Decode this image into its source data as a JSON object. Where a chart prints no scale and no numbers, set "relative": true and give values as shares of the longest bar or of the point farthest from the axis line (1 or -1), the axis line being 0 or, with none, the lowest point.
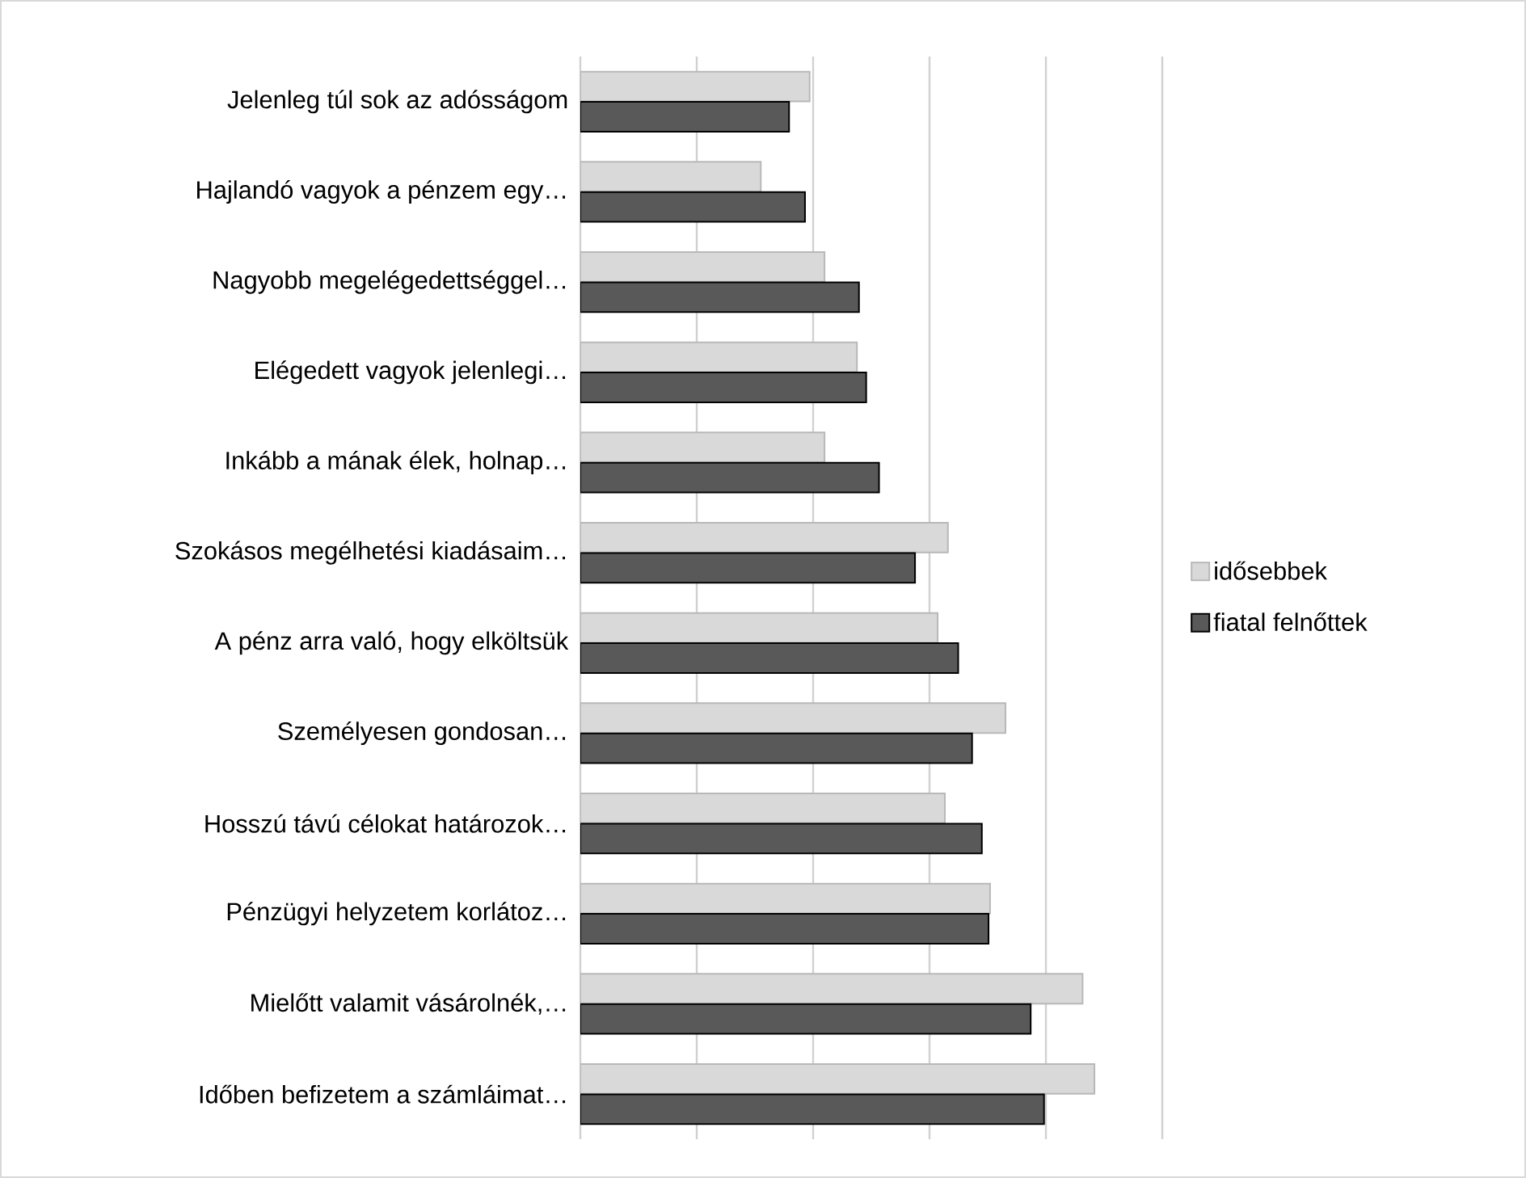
{
  "chart_data": {
    "type": "bar",
    "orientation": "horizontal",
    "relative": true,
    "grid": "x",
    "legend": "right",
    "categories": [
      "Jelenleg túl sok az adósságom",
      "Hajlandó vagyok a pénzem egy…",
      "Nagyobb megelégedettséggel…",
      "Elégedett vagyok jelenlegi…",
      "Inkább a mának élek, holnap…",
      "Szokásos megélhetési kiadásaim…",
      "A pénz arra való, hogy elköltsük",
      "Személyesen gondosan…",
      "Hosszú távú célokat határozok…",
      "Pénzügyi helyzetem korlátoz…",
      "Mielőtt valamit vásárolnék,…",
      "Időben befizetem a számláimat…"
    ],
    "series": [
      {
        "name": "idősebbek",
        "color": "#d9d9d9",
        "values": [
          0.446,
          0.351,
          0.475,
          0.538,
          0.475,
          0.715,
          0.695,
          0.827,
          0.709,
          0.797,
          0.977,
          1
        ]
      },
      {
        "name": "fiatal felnőttek",
        "color": "#595959",
        "values": [
          0.406,
          0.437,
          0.542,
          0.556,
          0.581,
          0.651,
          0.735,
          0.762,
          0.781,
          0.794,
          0.876,
          0.902
        ]
      }
    ]
  }
}
